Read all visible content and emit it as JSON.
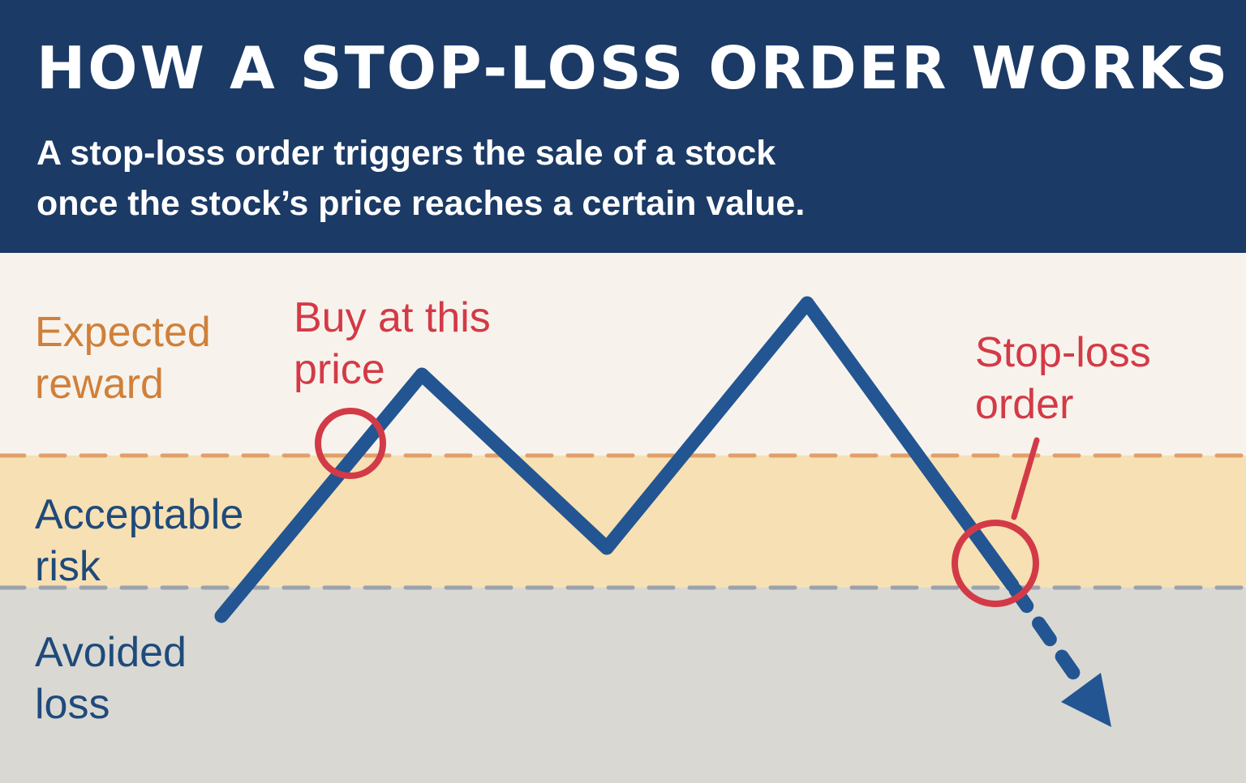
{
  "header": {
    "title": "HOW A STOP-LOSS ORDER WORKS",
    "subtitle_line1": "A stop-loss order triggers the sale of a stock",
    "subtitle_line2": "once the stock’s price reaches a certain value."
  },
  "zones": {
    "reward": {
      "line1": "Expected",
      "line2": "reward",
      "color": "#d0803a"
    },
    "risk": {
      "line1": "Acceptable",
      "line2": "risk",
      "color": "#1f4a7a"
    },
    "loss": {
      "line1": "Avoided",
      "line2": "loss",
      "color": "#1f4a7a"
    }
  },
  "annotations": {
    "buy": {
      "line1": "Buy at this",
      "line2": "price"
    },
    "stop": {
      "line1": "Stop-loss",
      "line2": "order"
    }
  },
  "colors": {
    "header_bg": "#1b3a66",
    "price_line": "#235592",
    "annotation_red": "#d33a47",
    "reward_band": "#f7f3ec",
    "risk_band": "#f7e0b3",
    "loss_band": "#d9d8d3"
  }
}
